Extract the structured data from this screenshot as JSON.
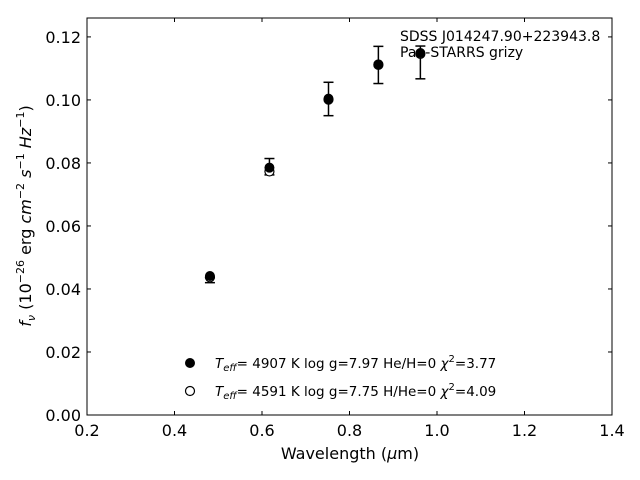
{
  "chart_data": {
    "type": "scatter",
    "xlabel": "Wavelength (μm)",
    "ylabel": "fν (10⁻²⁶ erg cm⁻² s⁻¹ Hz⁻¹)",
    "xlim": [
      0.2,
      1.4
    ],
    "ylim": [
      0.0,
      0.126
    ],
    "x_ticks": [
      "0.2",
      "0.4",
      "0.6",
      "0.8",
      "1.0",
      "1.2",
      "1.4"
    ],
    "y_ticks": [
      "0.00",
      "0.02",
      "0.04",
      "0.06",
      "0.08",
      "0.10",
      "0.12"
    ],
    "grid": false,
    "annotations": [
      "SDSS J014247.90+223943.8",
      "Pan-STARRS grizy"
    ],
    "observed": {
      "x": [
        0.481,
        0.617,
        0.752,
        0.866,
        0.962
      ],
      "y": [
        0.0428,
        0.0788,
        0.1003,
        0.1111,
        0.1119
      ],
      "yerr": [
        0.0008,
        0.0026,
        0.0053,
        0.0059,
        0.0052
      ]
    },
    "series": [
      {
        "name": "Teff= 4907 K log g=7.97 He/H=0 χ2=3.77",
        "marker": "filled-circle",
        "x": [
          0.481,
          0.617,
          0.752,
          0.866,
          0.962
        ],
        "y": [
          0.0441,
          0.0785,
          0.1004,
          0.1113,
          0.1149
        ]
      },
      {
        "name": "Teff= 4591 K log g=7.75 H/He=0 χ2=4.09",
        "marker": "open-circle",
        "x": [
          0.481,
          0.617,
          0.752,
          0.866,
          0.962
        ],
        "y": [
          0.0437,
          0.0773,
          0.1001,
          0.1111,
          0.1146
        ]
      }
    ],
    "legend": {
      "placement": "bottom-center",
      "entries": [
        {
          "teff_sym": "T",
          "teff_sub": "eff",
          "value": "4907 K",
          "rest": "log g=7.97  He/H=0",
          "chi": "χ",
          "chi_sup": "2",
          "chi_val": "=3.77"
        },
        {
          "teff_sym": "T",
          "teff_sub": "eff",
          "value": "4591 K",
          "rest": "log g=7.75  H/He=0",
          "chi": "χ",
          "chi_sup": "2",
          "chi_val": "=4.09"
        }
      ]
    }
  }
}
